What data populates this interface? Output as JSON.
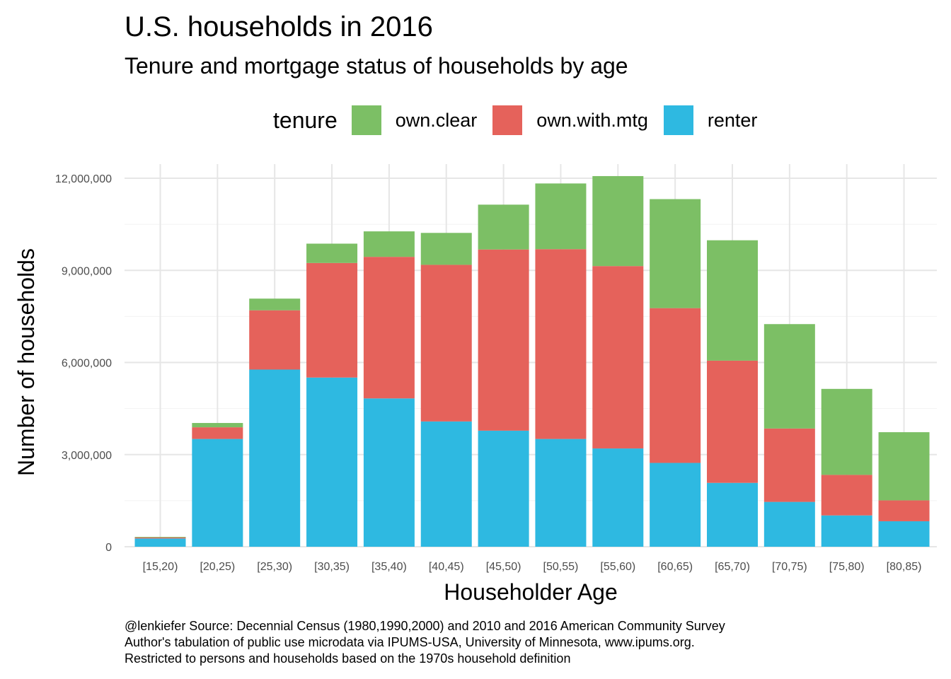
{
  "chart_data": {
    "type": "bar",
    "stacked": true,
    "title": "U.S. households in 2016",
    "subtitle": "Tenure and mortgage status of households by age",
    "xlabel": "Householder Age",
    "ylabel": "Number of households",
    "ylim": [
      0,
      12000000
    ],
    "yticks": [
      0,
      3000000,
      6000000,
      9000000,
      12000000
    ],
    "ytick_labels": [
      "0",
      "3,000,000",
      "6,000,000",
      "9,000,000",
      "12,000,000"
    ],
    "grid": true,
    "legend": {
      "title": "tenure",
      "position": "top"
    },
    "categories": [
      "[15,20)",
      "[20,25)",
      "[25,30)",
      "[30,35)",
      "[35,40)",
      "[40,45)",
      "[45,50)",
      "[50,55)",
      "[55,60)",
      "[60,65)",
      "[65,70)",
      "[70,75)",
      "[75,80)",
      "[80,85)"
    ],
    "series": [
      {
        "name": "own.clear",
        "color": "#7CBF65",
        "values": [
          20000,
          140000,
          380000,
          630000,
          830000,
          1040000,
          1460000,
          2140000,
          2930000,
          3550000,
          3920000,
          3400000,
          2800000,
          2220000
        ]
      },
      {
        "name": "own.with.mtg",
        "color": "#E5625B",
        "values": [
          30000,
          380000,
          1930000,
          3730000,
          4610000,
          5100000,
          5900000,
          6180000,
          5940000,
          5040000,
          3980000,
          2390000,
          1320000,
          680000
        ]
      },
      {
        "name": "renter",
        "color": "#2EB9E1",
        "values": [
          270000,
          3510000,
          5770000,
          5510000,
          4830000,
          4080000,
          3780000,
          3510000,
          3200000,
          2730000,
          2080000,
          1460000,
          1020000,
          830000
        ]
      }
    ]
  },
  "caption": [
    "@lenkiefer Source: Decennial Census (1980,1990,2000) and 2010 and 2016 American Community Survey",
    "Author's tabulation of public use microdata via IPUMS-USA, University of Minnesota, www.ipums.org.",
    "Restricted to persons and households based on the 1970s household definition"
  ]
}
